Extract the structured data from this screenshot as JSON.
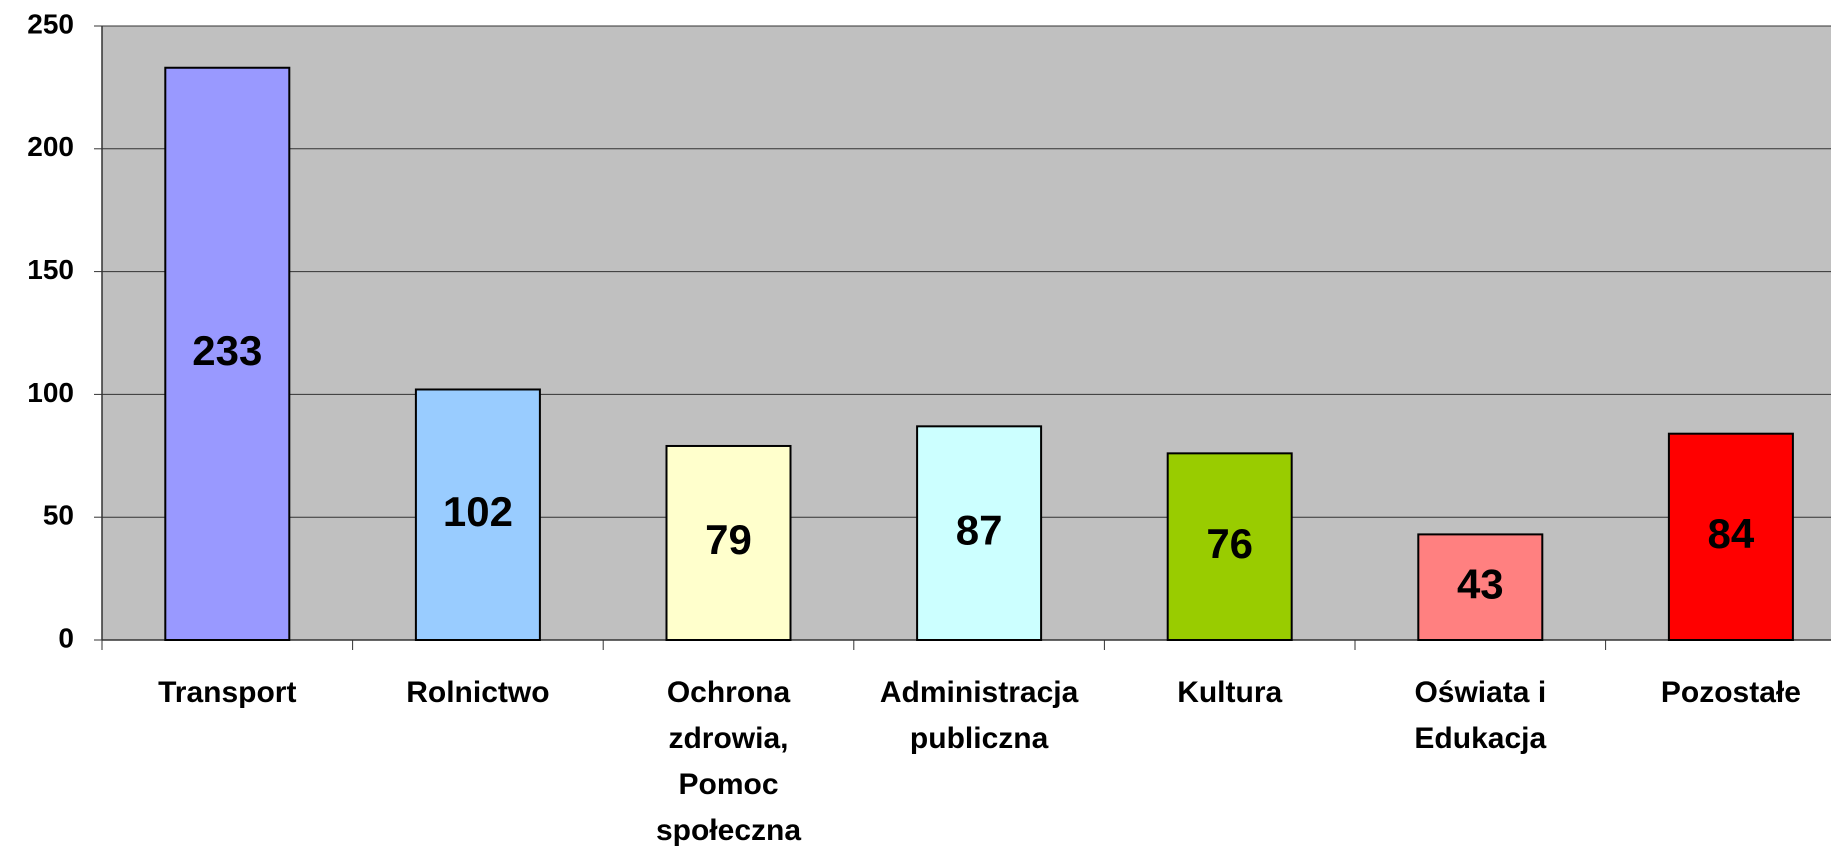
{
  "chart_data": {
    "type": "bar",
    "categories": [
      "Transport",
      "Rolnictwo",
      "Ochrona zdrowia, Pomoc społeczna",
      "Administracja publiczna",
      "Kultura",
      "Oświata i Edukacja",
      "Pozostałe"
    ],
    "values": [
      233,
      102,
      79,
      87,
      76,
      43,
      84
    ],
    "colors": [
      "#9999ff",
      "#99ccff",
      "#ffffcc",
      "#ccffff",
      "#99cc00",
      "#ff8080",
      "#ff0000"
    ],
    "ylim": [
      0,
      250
    ],
    "yticks": [
      0,
      50,
      100,
      150,
      200,
      250
    ],
    "grid": true
  }
}
